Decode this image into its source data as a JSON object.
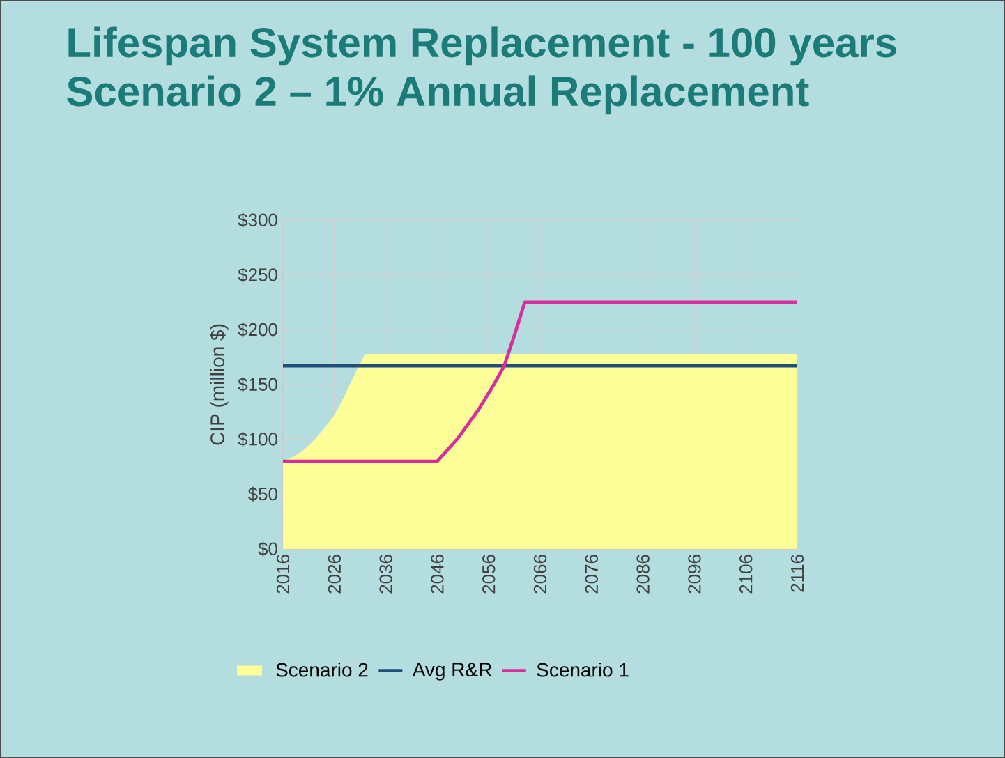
{
  "chart_data": {
    "type": "area",
    "title": "Lifespan System Replacement - 100 years",
    "subtitle": "Scenario 2 – 1% Annual Replacement",
    "ylabel": "CIP (million $)",
    "xlim": [
      2016,
      2116
    ],
    "xticks": [
      2016,
      2026,
      2036,
      2046,
      2056,
      2066,
      2076,
      2086,
      2096,
      2106,
      2116
    ],
    "ylim": [
      0,
      300
    ],
    "yticks": [
      {
        "value": 0,
        "label": "$0"
      },
      {
        "value": 50,
        "label": "$50"
      },
      {
        "value": 100,
        "label": "$100"
      },
      {
        "value": 150,
        "label": "$150"
      },
      {
        "value": 200,
        "label": "$200"
      },
      {
        "value": 250,
        "label": "$250"
      },
      {
        "value": 300,
        "label": "$300"
      }
    ],
    "grid": true,
    "legend": "bottom",
    "marker": "none",
    "line_style": "solid",
    "series": [
      {
        "name": "Scenario 2",
        "color": "#ffff99",
        "x": [
          2016,
          2018,
          2020,
          2022,
          2024,
          2026,
          2028,
          2030,
          2032,
          2116
        ],
        "values": [
          80,
          84,
          90,
          99,
          110,
          122,
          140,
          160,
          178,
          178
        ]
      },
      {
        "name": "Avg R&R",
        "type": "line",
        "color": "#1f4e79",
        "x": [
          2016,
          2116
        ],
        "values": [
          167,
          167
        ]
      },
      {
        "name": "Scenario 1",
        "type": "line",
        "color": "#d62f9b",
        "x": [
          2016,
          2046,
          2050,
          2054,
          2057,
          2059,
          2061,
          2063,
          2116
        ],
        "values": [
          80,
          80,
          101,
          127,
          150,
          167,
          195,
          225,
          225
        ]
      }
    ]
  }
}
